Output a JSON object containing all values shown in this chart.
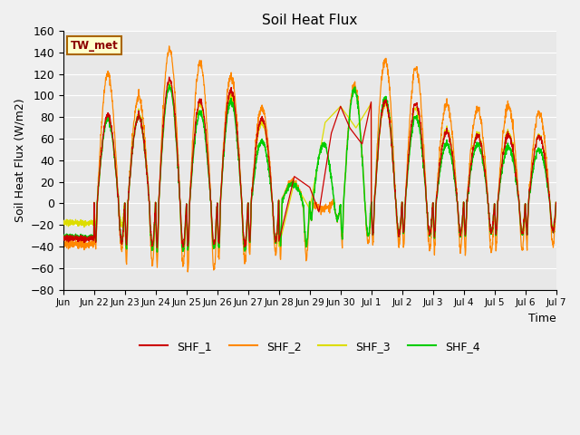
{
  "title": "Soil Heat Flux",
  "xlabel": "Time",
  "ylabel": "Soil Heat Flux (W/m2)",
  "annotation": "TW_met",
  "ylim": [
    -80,
    160
  ],
  "colors": {
    "SHF_1": "#cc0000",
    "SHF_2": "#ff8800",
    "SHF_3": "#dddd00",
    "SHF_4": "#00cc00"
  },
  "plot_bg": "#e8e8e8",
  "fig_bg": "#f0f0f0",
  "grid_color": "#ffffff",
  "tick_labels": [
    "Jun",
    "Jun 22",
    "Jun 23",
    "Jun 24",
    "Jun 25",
    "Jun 26",
    "Jun 27",
    "Jun 28",
    "Jun 29",
    "Jun 30",
    "Jul 1",
    "Jul 2",
    "Jul 3",
    "Jul 4",
    "Jul 5",
    "Jul 6",
    "Jul 7"
  ],
  "day_peaks_shf2": [
    120,
    98,
    143,
    130,
    118,
    89,
    20,
    -5,
    109,
    133,
    125,
    92,
    88,
    90,
    84
  ],
  "day_troughs_shf2": [
    -42,
    -56,
    -58,
    -62,
    -53,
    -47,
    -50,
    -15,
    -37,
    -37,
    -41,
    -42,
    -45,
    -42,
    -38
  ],
  "day_peaks_shf1": [
    82,
    80,
    115,
    95,
    105,
    79,
    27,
    65,
    91,
    95,
    92,
    66,
    63,
    63,
    62
  ],
  "day_troughs_shf1": [
    -36,
    -38,
    -40,
    -38,
    -38,
    -35,
    -35,
    -30,
    -28,
    -28,
    -27,
    -27,
    -27,
    -27,
    -25
  ],
  "day_peaks_shf3": [
    80,
    82,
    110,
    92,
    100,
    75,
    20,
    70,
    90,
    93,
    88,
    68,
    65,
    65,
    63
  ],
  "day_troughs_shf3": [
    -20,
    -40,
    -42,
    -40,
    -40,
    -35,
    -40,
    -12,
    -28,
    -27,
    -27,
    -28,
    -28,
    -25,
    -23
  ],
  "day_peaks_shf4": [
    78,
    80,
    108,
    84,
    95,
    58,
    18,
    55,
    105,
    98,
    80,
    55,
    55,
    52,
    50
  ],
  "day_troughs_shf4": [
    -35,
    -42,
    -44,
    -42,
    -42,
    -36,
    -38,
    -15,
    -30,
    -28,
    -28,
    -28,
    -28,
    -28,
    -25
  ]
}
